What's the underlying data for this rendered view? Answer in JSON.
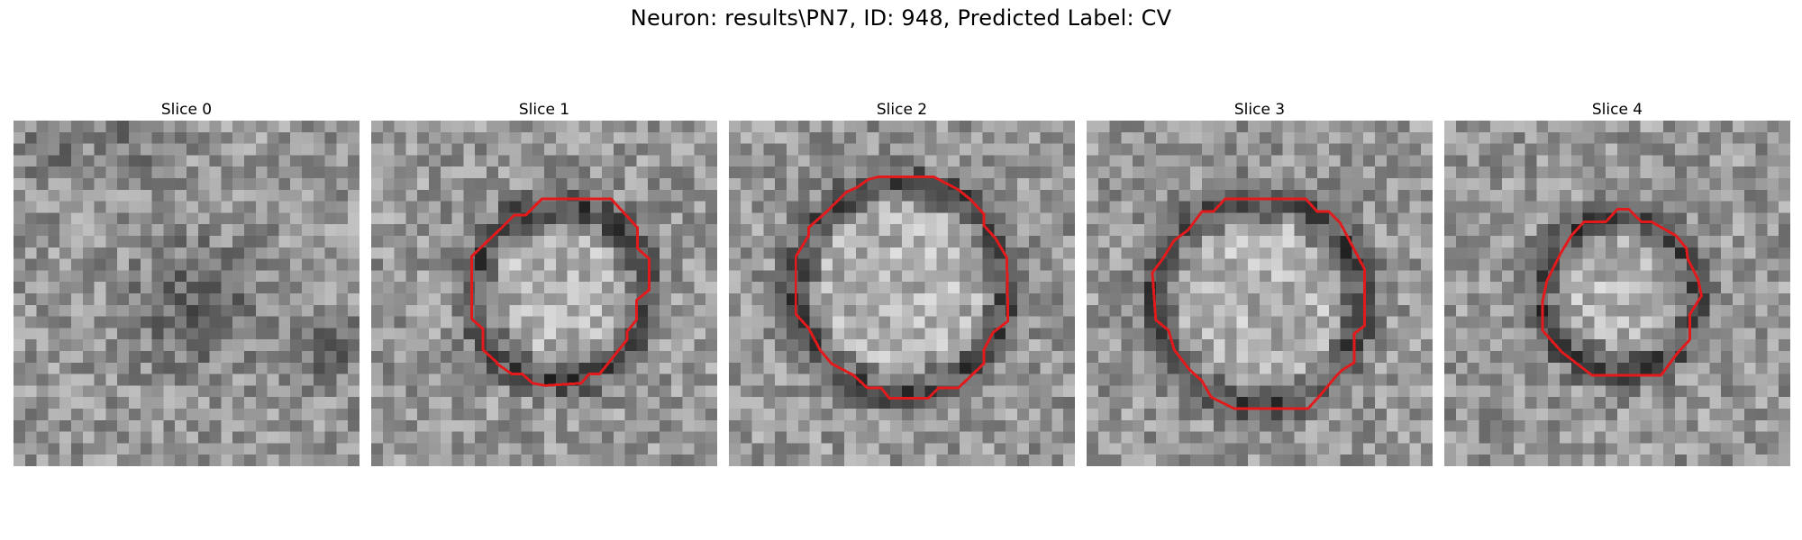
{
  "figure": {
    "title": "Neuron: results\\PN7, ID: 948, Predicted Label: CV"
  },
  "slices": [
    {
      "label": "Slice 0",
      "has_contour": false
    },
    {
      "label": "Slice 1",
      "has_contour": true
    },
    {
      "label": "Slice 2",
      "has_contour": true
    },
    {
      "label": "Slice 3",
      "has_contour": true
    },
    {
      "label": "Slice 4",
      "has_contour": true
    }
  ],
  "colors": {
    "contour": "#e31a1c",
    "background": "#ffffff"
  },
  "image_style": "grayscale pixelated microscopy patch"
}
